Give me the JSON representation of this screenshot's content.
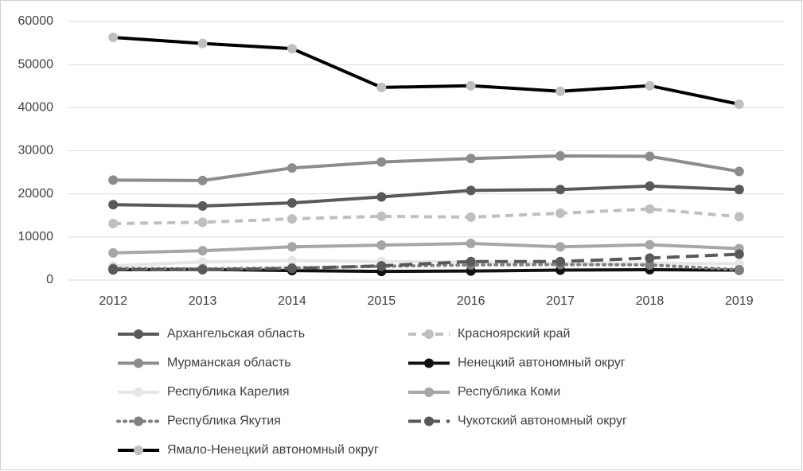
{
  "chart_data": {
    "type": "line",
    "x": [
      2012,
      2013,
      2014,
      2015,
      2016,
      2017,
      2018,
      2019
    ],
    "ylim": [
      0,
      60000
    ],
    "yticks": [
      0,
      10000,
      20000,
      30000,
      40000,
      50000,
      60000
    ],
    "grid": true,
    "series": [
      {
        "name": "Архангельская область",
        "color": "#595959",
        "marker_color": "#595959",
        "dash": "solid",
        "values": [
          17500,
          17200,
          17900,
          19300,
          20800,
          21000,
          21800,
          21000
        ]
      },
      {
        "name": "Красноярский край",
        "color": "#bfbfbf",
        "marker_color": "#bfbfbf",
        "dash": "dashed",
        "values": [
          13100,
          13400,
          14200,
          14800,
          14600,
          15500,
          16500,
          14700
        ]
      },
      {
        "name": "Мурманская область",
        "color": "#8c8c8c",
        "marker_color": "#8c8c8c",
        "dash": "solid",
        "values": [
          23200,
          23100,
          26000,
          27400,
          28200,
          28800,
          28700,
          25200
        ]
      },
      {
        "name": "Ненецкий автономный округ",
        "color": "#111111",
        "marker_color": "#111111",
        "dash": "solid",
        "values": [
          2400,
          2500,
          2200,
          2000,
          2100,
          2300,
          2400,
          2300
        ]
      },
      {
        "name": "Республика Карелия",
        "color": "#e6e6e6",
        "marker_color": "#e6e6e6",
        "dash": "solid",
        "values": [
          3300,
          4200,
          4500,
          4300,
          4200,
          3900,
          3900,
          3800
        ]
      },
      {
        "name": "Республика Коми",
        "color": "#a6a6a6",
        "marker_color": "#a6a6a6",
        "dash": "solid",
        "values": [
          6300,
          6800,
          7700,
          8100,
          8500,
          7700,
          8200,
          7300
        ]
      },
      {
        "name": "Республика Якутия",
        "color": "#808080",
        "marker_color": "#808080",
        "dash": "dotted",
        "values": [
          2700,
          2600,
          2800,
          3200,
          3500,
          3600,
          3500,
          2400
        ]
      },
      {
        "name": "Чукотский автономный округ",
        "color": "#595959",
        "marker_color": "#595959",
        "dash": "longdash",
        "values": [
          2500,
          2400,
          2700,
          3300,
          4300,
          4300,
          5100,
          6000
        ]
      },
      {
        "name": "Ямало-Ненецкий автономный округ",
        "color": "#000000",
        "marker_color": "#bfbfbf",
        "dash": "solid",
        "values": [
          56300,
          54900,
          53700,
          44700,
          45100,
          43800,
          45100,
          40800
        ]
      }
    ]
  }
}
